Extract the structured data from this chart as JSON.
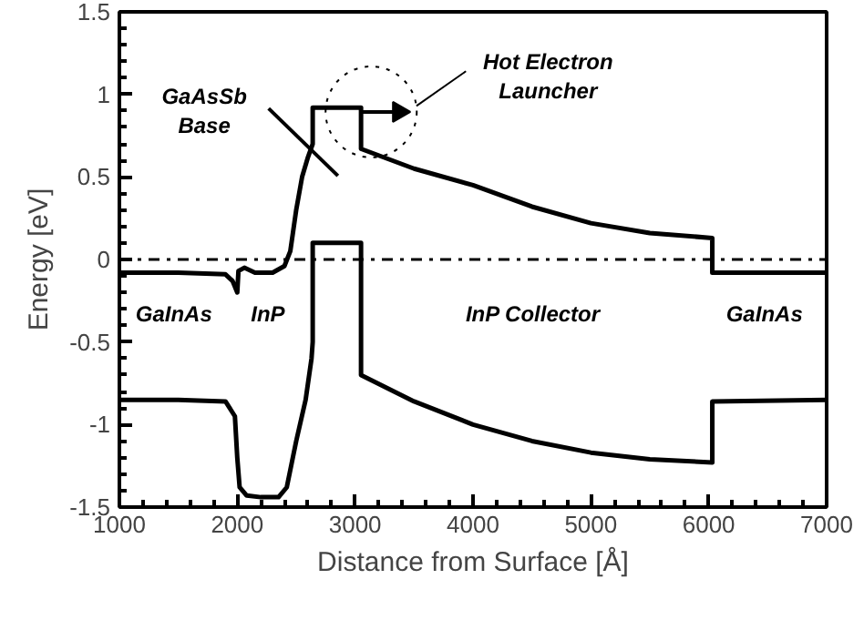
{
  "chart_data": {
    "type": "line",
    "xlabel": "Distance from Surface [Å]",
    "ylabel": "Energy [eV]",
    "xlim": [
      1000,
      7000
    ],
    "ylim": [
      -1.5,
      1.5
    ],
    "xticks": [
      1000,
      2000,
      3000,
      4000,
      5000,
      6000,
      7000
    ],
    "yticks": [
      -1.5,
      -1,
      -0.5,
      0,
      0.5,
      1,
      1.5
    ],
    "grid": false,
    "marker": "none",
    "line_style": "solid",
    "series": [
      {
        "color": "#000000",
        "x": [
          1000,
          1500,
          1900,
          1960,
          2000,
          2010,
          2060,
          2150,
          2300,
          2400,
          2450,
          2500,
          2550,
          2600,
          2640,
          2640,
          3050,
          3050,
          3500,
          4000,
          4500,
          5000,
          5500,
          6030,
          6030,
          7000
        ],
        "values": [
          -0.08,
          -0.08,
          -0.09,
          -0.13,
          -0.2,
          -0.07,
          -0.05,
          -0.08,
          -0.08,
          -0.04,
          0.05,
          0.3,
          0.5,
          0.62,
          0.7,
          0.92,
          0.92,
          0.67,
          0.55,
          0.45,
          0.32,
          0.22,
          0.16,
          0.13,
          -0.08,
          -0.08
        ]
      },
      {
        "color": "#000000",
        "x": [
          1000,
          1500,
          1900,
          1980,
          2000,
          2020,
          2080,
          2200,
          2350,
          2420,
          2500,
          2580,
          2630,
          2640,
          2640,
          3050,
          3050,
          3500,
          4000,
          4500,
          5000,
          5500,
          6030,
          6030,
          7000
        ],
        "values": [
          -0.85,
          -0.85,
          -0.86,
          -0.95,
          -1.2,
          -1.38,
          -1.43,
          -1.44,
          -1.44,
          -1.38,
          -1.1,
          -0.85,
          -0.6,
          -0.5,
          0.1,
          0.1,
          -0.7,
          -0.86,
          -1.0,
          -1.1,
          -1.17,
          -1.21,
          -1.23,
          -0.86,
          -0.85
        ]
      }
    ],
    "ref_lines": [
      {
        "axis": "y",
        "value": 0,
        "line_style": "dashdot",
        "color": "#000000"
      }
    ],
    "annotations": [
      "GaAsSb\nBase",
      "Hot Electron\nLauncher",
      "GaInAs",
      "InP",
      "InP Collector",
      "GaInAs"
    ]
  }
}
